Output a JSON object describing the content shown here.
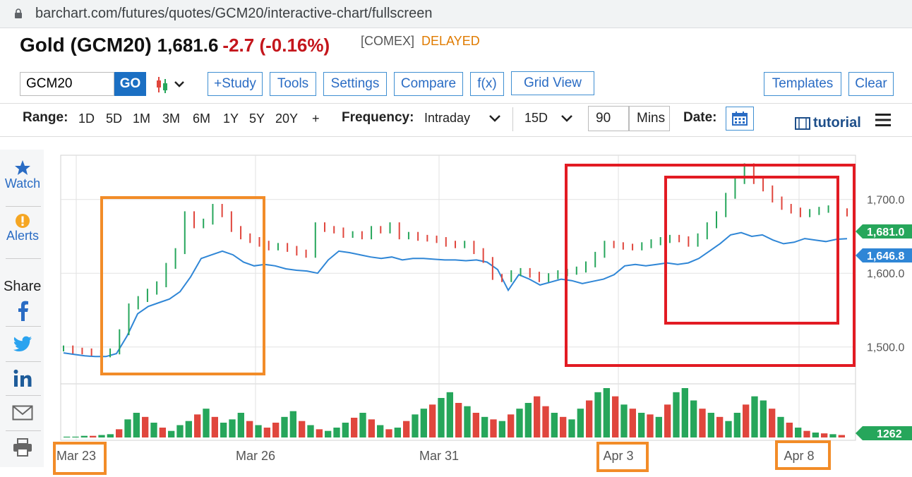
{
  "browser": {
    "url": "barchart.com/futures/quotes/GCM20/interactive-chart/fullscreen"
  },
  "quote": {
    "name": "Gold (GCM20)",
    "price": "1,681.6",
    "change": "-2.7 (-0.16%)",
    "exchange": "[COMEX]",
    "status": "DELAYED"
  },
  "toolbar": {
    "symbol_value": "GCM20",
    "go_label": "GO",
    "chart_type_icon": "candlestick-icon",
    "study_label": "+Study",
    "tools_label": "Tools",
    "settings_label": "Settings",
    "compare_label": "Compare",
    "fx_label": "f(x)",
    "grid_view_label": "Grid View",
    "templates_label": "Templates",
    "clear_label": "Clear"
  },
  "range_bar": {
    "range_label": "Range:",
    "ranges": [
      "1D",
      "5D",
      "1M",
      "3M",
      "6M",
      "1Y",
      "5Y",
      "20Y",
      "+"
    ],
    "frequency_label": "Frequency:",
    "frequency_value": "Intraday",
    "interval_value": "15D",
    "mins_value": "90",
    "mins_label": "Mins",
    "date_label": "Date:",
    "tutorial_label": "tutorial"
  },
  "sidebar": {
    "watch_label": "Watch",
    "alerts_label": "Alerts",
    "share_label": "Share"
  },
  "colors": {
    "up": "#26a65b",
    "down": "#e0463d",
    "compare_line": "#2f86d6",
    "orange_box": "#f28c28",
    "red_box": "#e21b23"
  },
  "chart_data": {
    "type": "line",
    "y_tick_labels": [
      "1,700.0",
      "1,600.0",
      "1,500.0"
    ],
    "y_ticks": [
      1700,
      1600,
      1500
    ],
    "ylim": [
      1450,
      1760
    ],
    "x_labels": [
      "Mar 23",
      "Mar 26",
      "Mar 31",
      "Apr 3",
      "Apr 8"
    ],
    "last_price_label": "1,681.0",
    "last_price": 1681.0,
    "compare_label": "1,646.8",
    "compare_value": 1646.8,
    "volume_label": "1262",
    "price_series": [
      1498,
      1495,
      1494,
      1492,
      1490,
      1494,
      1520,
      1555,
      1565,
      1575,
      1585,
      1610,
      1630,
      1680,
      1665,
      1670,
      1690,
      1680,
      1660,
      1650,
      1645,
      1640,
      1635,
      1637,
      1633,
      1628,
      1625,
      1665,
      1660,
      1658,
      1652,
      1653,
      1650,
      1660,
      1658,
      1665,
      1650,
      1652,
      1648,
      1647,
      1645,
      1640,
      1638,
      1640,
      1630,
      1618,
      1595,
      1592,
      1600,
      1603,
      1598,
      1592,
      1596,
      1600,
      1602,
      1605,
      1612,
      1625,
      1640,
      1638,
      1636,
      1635,
      1638,
      1642,
      1645,
      1648,
      1646,
      1640,
      1650,
      1665,
      1680,
      1705,
      1725,
      1745,
      1725,
      1715,
      1700,
      1690,
      1685,
      1680,
      1683,
      1686,
      1688,
      1684,
      1681
    ],
    "compare_series": [
      1492,
      1490,
      1488,
      1487,
      1487,
      1491,
      1515,
      1545,
      1555,
      1560,
      1565,
      1575,
      1595,
      1620,
      1625,
      1630,
      1625,
      1615,
      1610,
      1612,
      1610,
      1606,
      1604,
      1603,
      1600,
      1618,
      1630,
      1628,
      1625,
      1622,
      1620,
      1622,
      1618,
      1620,
      1620,
      1619,
      1618,
      1618,
      1617,
      1618,
      1615,
      1605,
      1577,
      1598,
      1592,
      1584,
      1588,
      1592,
      1590,
      1586,
      1589,
      1592,
      1598,
      1610,
      1612,
      1610,
      1612,
      1614,
      1612,
      1614,
      1620,
      1630,
      1640,
      1652,
      1655,
      1650,
      1652,
      1645,
      1640,
      1642,
      1647,
      1645,
      1643,
      1646,
      1646.8
    ],
    "volume_series": [
      1,
      1,
      2,
      2,
      3,
      4,
      10,
      22,
      30,
      25,
      18,
      12,
      8,
      15,
      20,
      28,
      35,
      25,
      18,
      22,
      30,
      20,
      15,
      12,
      18,
      25,
      32,
      20,
      15,
      10,
      8,
      12,
      18,
      24,
      30,
      22,
      15,
      10,
      12,
      20,
      28,
      35,
      40,
      48,
      55,
      42,
      38,
      30,
      25,
      22,
      20,
      28,
      35,
      42,
      50,
      38,
      30,
      25,
      22,
      35,
      45,
      55,
      60,
      50,
      40,
      35,
      30,
      28,
      25,
      40,
      55,
      60,
      45,
      35,
      30,
      25,
      20,
      30,
      40,
      50,
      45,
      35,
      25,
      18,
      12,
      8,
      6,
      5,
      4,
      3
    ]
  }
}
